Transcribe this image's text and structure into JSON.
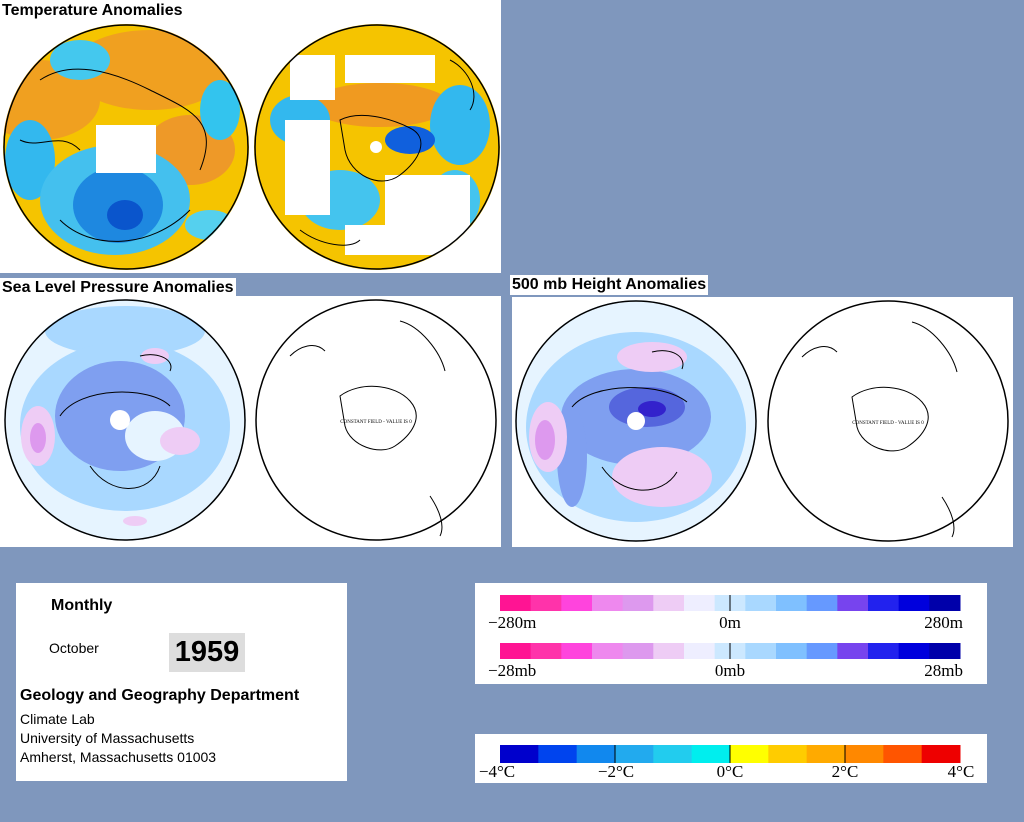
{
  "sections": {
    "temperature_title": "Temperature Anomalies",
    "slp_title": "Sea Level Pressure Anomalies",
    "height_title": "500 mb Height Anomalies"
  },
  "maps": {
    "constant_field_label": "CONSTANT FIELD - VALUE IS 0"
  },
  "info": {
    "period": "Monthly",
    "month": "October",
    "year": "1959",
    "department": "Geology and Geography Department",
    "lab": "Climate Lab",
    "university": "University of Massachusetts",
    "address": "Amherst, Massachusetts 01003"
  },
  "legends": {
    "height": {
      "left": "−280m",
      "center": "0m",
      "right": "280m"
    },
    "pressure": {
      "left": "−28mb",
      "center": "0mb",
      "right": "28mb"
    },
    "temperature": {
      "labels": [
        "−4°C",
        "−2°C",
        "0°C",
        "2°C",
        "4°C"
      ]
    }
  },
  "colors": {
    "background": "#7f97bd",
    "anomaly_scale": [
      "#ff1493",
      "#ff33aa",
      "#ff44dd",
      "#ee88ee",
      "#dd99ee",
      "#eeccf5",
      "#eeeeff",
      "#cce8ff",
      "#a9d8ff",
      "#7fc0ff",
      "#6699ff",
      "#7744ee",
      "#2222ee",
      "#0000dd",
      "#0000aa"
    ],
    "temperature_scale": [
      "#0000cc",
      "#0044ee",
      "#1188ee",
      "#22aaee",
      "#22ccee",
      "#00eeee",
      "#ffff00",
      "#ffcc00",
      "#ffaa00",
      "#ff8800",
      "#ff5500",
      "#ee0000"
    ]
  }
}
